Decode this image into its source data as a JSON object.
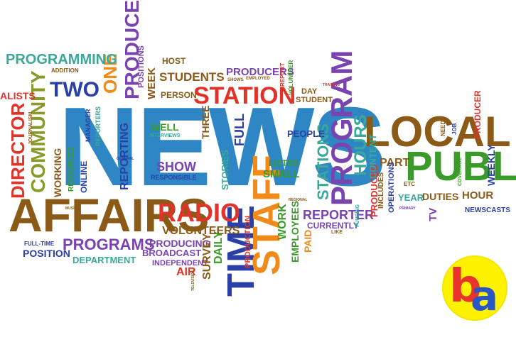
{
  "word_cloud": {
    "news": "NEWS",
    "affairs": "AFFAIRS",
    "local": "LOCAL",
    "public": "PUBLI",
    "time": "TIME",
    "staff": "STAFF",
    "program": "PROGRAM",
    "station": "STATION",
    "radio": "RADIO",
    "community": "COMMUNITY",
    "director": "DIRECTOR",
    "produce": "PRODUCE",
    "two": "TWO",
    "one": "ONE",
    "programming": "PROGRAMMING",
    "students": "STUDENTS",
    "producers": "PRODUCERS",
    "stations": "STATIONS",
    "hours": "HOURS",
    "programs": "PROGRAMS",
    "reporter": "REPORTER",
    "show": "SHOW",
    "reporting": "REPORTING",
    "well": "WELL",
    "volunteers": "VOLUNTEERS",
    "producing": "PRODUCING",
    "broadcast": "BROADCAST",
    "position": "POSITION",
    "department": "DEPARTMENT",
    "working": "WORKING",
    "online": "ONLINE",
    "independent": "INDEPENDENT",
    "air": "AIR",
    "survey": "SURVEY",
    "daily": "DAILY",
    "production": "PRODUCTION",
    "work": "WORK",
    "employees": "EMPLOYEES",
    "paid": "PAID",
    "currently": "CURRENTLY",
    "produced": "PRODUCED",
    "part": "PART",
    "content": "CONTENT",
    "small": "SMALL",
    "listed": "LISTED",
    "people": "PEOPLE",
    "full": "FULL",
    "three": "THREE",
    "stories": "STORIES",
    "year": "YEAR",
    "duties": "DUTIES",
    "hour": "HOUR",
    "tv": "TV",
    "newscasts": "NEWSCASTS",
    "weekly": "WEEKLY",
    "producer": "PRODUCER",
    "host": "HOST",
    "person": "PERSON",
    "week": "WEEK",
    "positions": "POSITIONS",
    "student": "STUDENT",
    "day": "DAY",
    "resources": "RESOURCES",
    "full_time": "FULL-TIME",
    "alists": "ALISTS",
    "addition": "ADDITION",
    "operations": "OPERATIONS",
    "includes": "INCLUDES",
    "funding": "FUNDING",
    "etc": "ETC",
    "responsible": "RESPONSIBLE",
    "interviews": "INTERVIEWS",
    "manager": "MANAGER",
    "reporters": "REPORTERS",
    "journalism": "JOURNALISM",
    "like": "LIKE",
    "volunteer": "VOLUNTEER",
    "employed": "EMPLOYED",
    "shows": "SHOWS",
    "report": "REPORT",
    "training": "TRAINING",
    "job": "JOB",
    "need": "NEED",
    "general": "GENERAL",
    "television": "TELEVISION",
    "coverage": "COVERAGE",
    "regional": "REGIONAL",
    "primary": "PRIMARY",
    "music": "MUSIC"
  },
  "logo": {
    "letter_b": "b",
    "letter_a": "a"
  }
}
